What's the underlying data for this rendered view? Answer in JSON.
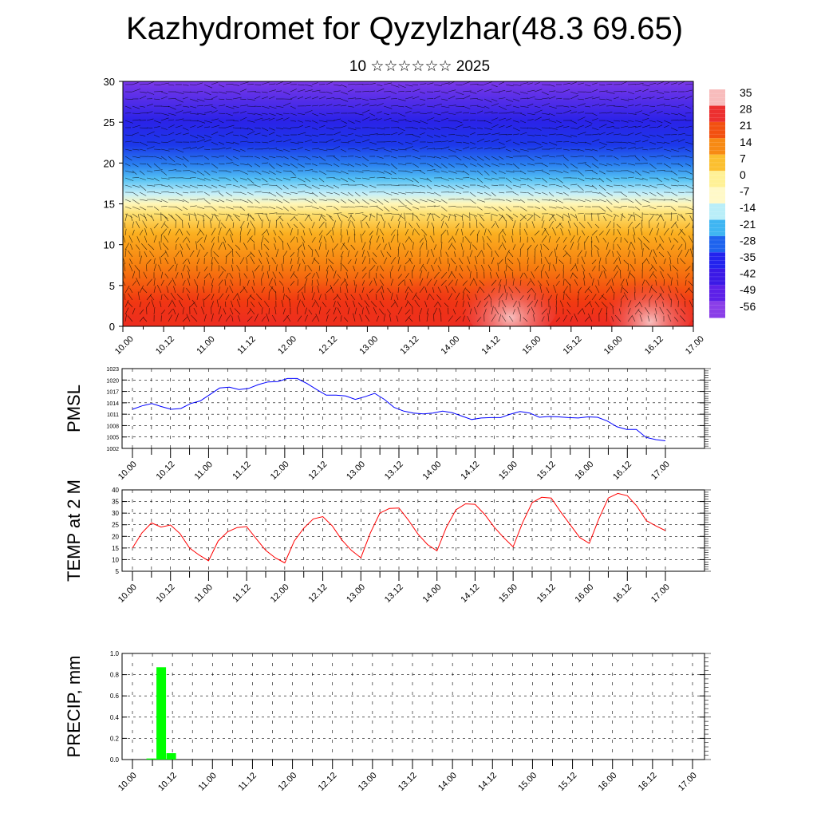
{
  "title": "Kazhydromet for Qyzylzhar(48.3 69.65)",
  "subtitle": "10 ☆☆☆☆☆☆ 2025",
  "time_labels": [
    "10.00",
    "10.12",
    "11.00",
    "11.12",
    "12.00",
    "12.12",
    "13.00",
    "13.12",
    "14.00",
    "14.12",
    "15.00",
    "15.12",
    "16.00",
    "16.12",
    "17.00"
  ],
  "chart_data": [
    {
      "type": "heatmap",
      "name": "vertical-temperature-section",
      "x_range": [
        0,
        84
      ],
      "y_range": [
        0,
        30
      ],
      "y_ticks": [
        "0",
        "5",
        "10",
        "15",
        "20",
        "25",
        "30"
      ],
      "colorbar": {
        "labels": [
          "35",
          "28",
          "21",
          "14",
          "7",
          "0",
          "-7",
          "-14",
          "-21",
          "-28",
          "-35",
          "-42",
          "-49",
          "-56"
        ],
        "colors": [
          "#f8bcbc",
          "#ec3030",
          "#f25010",
          "#f78a14",
          "#fbbf30",
          "#fff196",
          "#fff9c8",
          "#b9eef8",
          "#3fb5f2",
          "#1e63ee",
          "#2323ee",
          "#3b19e6",
          "#5d20e8",
          "#8a3ee8"
        ]
      },
      "wind_vectors": true
    },
    {
      "type": "line",
      "ylabel": "PMSL",
      "ylim": [
        1002,
        1023
      ],
      "y_ticks": [
        "1023",
        "1020",
        "1017",
        "1014",
        "1011",
        "1008",
        "1005",
        "1002"
      ],
      "color": "#0000ff",
      "values": [
        1012.3,
        1013.2,
        1013.8,
        1013.0,
        1012.3,
        1012.5,
        1013.8,
        1014.5,
        1016.2,
        1017.9,
        1018.1,
        1017.5,
        1017.8,
        1018.8,
        1019.5,
        1019.6,
        1020.4,
        1020.4,
        1019.1,
        1017.5,
        1016.0,
        1016.0,
        1015.8,
        1014.9,
        1015.6,
        1016.5,
        1014.9,
        1012.8,
        1011.8,
        1011.3,
        1011.1,
        1011.3,
        1011.8,
        1011.4,
        1010.5,
        1009.6,
        1010.0,
        1010.1,
        1010.1,
        1011.0,
        1011.7,
        1011.3,
        1010.2,
        1010.4,
        1010.3,
        1010.1,
        1010.0,
        1010.3,
        1010.2,
        1009.2,
        1007.7,
        1007.0,
        1007.0,
        1004.9,
        1004.3,
        1004.0
      ],
      "x_step_hours": 1.5
    },
    {
      "type": "line",
      "ylabel": "TEMP at 2 M",
      "ylim": [
        5,
        40
      ],
      "y_ticks": [
        "40",
        "35",
        "30",
        "25",
        "20",
        "15",
        "10",
        "5"
      ],
      "color": "#ff0000",
      "values": [
        15.0,
        21.5,
        25.8,
        24.0,
        24.9,
        21.2,
        15.0,
        12.0,
        9.5,
        18.0,
        22.0,
        23.8,
        24.2,
        19.0,
        14.0,
        10.8,
        8.6,
        18.0,
        23.5,
        27.5,
        28.5,
        24.5,
        18.5,
        14.0,
        10.8,
        21.5,
        30.0,
        32.0,
        32.2,
        27.0,
        21.0,
        16.5,
        13.8,
        24.0,
        31.5,
        34.0,
        33.8,
        29.5,
        24.0,
        19.5,
        15.5,
        26.0,
        34.5,
        36.8,
        36.5,
        30.5,
        25.0,
        19.5,
        17.0,
        27.5,
        36.5,
        38.5,
        37.5,
        33.0,
        26.8,
        24.5,
        22.5
      ],
      "x_step_hours": 1.5
    },
    {
      "type": "bar",
      "ylabel": "PRECIP, mm",
      "ylim": [
        0,
        1.0
      ],
      "y_ticks": [
        "1.0",
        "0.8",
        "0.6",
        "0.4",
        "0.2",
        "0.0"
      ],
      "color": "#00ff00",
      "bar_hours": [
        3,
        6,
        9
      ],
      "values": [
        0.01,
        0.87,
        0.06
      ]
    }
  ]
}
